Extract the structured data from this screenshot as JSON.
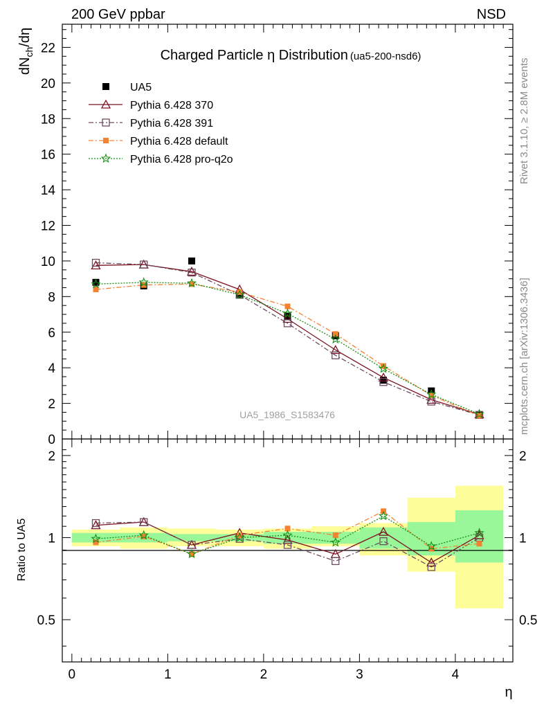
{
  "header": {
    "left": "200 GeV ppbar",
    "right": "NSD"
  },
  "side_texts": {
    "rivet": "Rivet 3.1.10, ≥ 2.8M events",
    "mcplots": "mcplots.cern.ch [arXiv:1306.3436]"
  },
  "watermark": "UA5_1986_S1583476",
  "colors": {
    "ua5": "#000000",
    "p370": "#7a1020",
    "p391": "#6e4a5e",
    "pdefault": "#f58231",
    "pq2o": "#138f13",
    "band_green": "#99f799",
    "band_yellow": "#fdfd99"
  },
  "chart_data": [
    {
      "type": "line",
      "title": "Charged Particle η Distribution",
      "title_suffix": "(ua5-200-nsd6)",
      "ylabel": "dN_ch/dη",
      "ylim": [
        0,
        23.3
      ],
      "xlim": [
        -0.1,
        4.6
      ],
      "y_ticks": [
        0,
        2,
        4,
        6,
        8,
        10,
        12,
        14,
        16,
        18,
        20,
        22
      ],
      "legend_position": "top-left",
      "x": [
        0.25,
        0.75,
        1.25,
        1.75,
        2.25,
        2.75,
        3.25,
        3.75,
        4.25
      ],
      "series": [
        {
          "name": "UA5",
          "marker": "square-filled",
          "values": [
            8.8,
            8.6,
            10.0,
            8.1,
            6.9,
            5.8,
            3.3,
            2.7,
            1.35
          ]
        },
        {
          "name": "Pythia 6.428 370",
          "marker": "triangle-open",
          "line": "solid",
          "values": [
            9.75,
            9.8,
            9.4,
            8.4,
            6.75,
            5.0,
            3.45,
            2.2,
            1.38
          ]
        },
        {
          "name": "Pythia 6.428 391",
          "marker": "square-open",
          "line": "dashdot",
          "values": [
            9.9,
            9.8,
            9.35,
            8.1,
            6.5,
            4.7,
            3.2,
            2.1,
            1.35
          ]
        },
        {
          "name": "Pythia 6.428 default",
          "marker": "square-small",
          "line": "dashdot",
          "values": [
            8.4,
            8.65,
            8.7,
            8.25,
            7.45,
            5.9,
            4.1,
            2.45,
            1.3
          ]
        },
        {
          "name": "Pythia 6.428 pro-q2o",
          "marker": "star",
          "line": "dotted",
          "values": [
            8.7,
            8.8,
            8.75,
            8.1,
            7.05,
            5.6,
            3.95,
            2.5,
            1.4
          ]
        }
      ]
    },
    {
      "type": "line",
      "ylabel": "Ratio to UA5",
      "xlabel": "η",
      "ylim": [
        0.35,
        2.3
      ],
      "xlim": [
        -0.1,
        4.6
      ],
      "y_ticks": [
        0.5,
        1,
        2
      ],
      "x_ticks": [
        0,
        1,
        2,
        3,
        4
      ],
      "x": [
        0.25,
        0.75,
        1.25,
        1.75,
        2.25,
        2.75,
        3.25,
        3.75,
        4.25
      ],
      "band_edges": [
        0,
        0.5,
        1.0,
        1.5,
        2.0,
        2.5,
        3.0,
        3.5,
        4.0,
        4.5
      ],
      "band_inner": [
        [
          0.96,
          1.04
        ],
        [
          0.96,
          1.04
        ],
        [
          0.97,
          1.03
        ],
        [
          0.97,
          1.03
        ],
        [
          0.95,
          1.05
        ],
        [
          0.95,
          1.05
        ],
        [
          0.91,
          1.09
        ],
        [
          0.86,
          1.14
        ],
        [
          0.81,
          1.26
        ]
      ],
      "band_outer": [
        [
          0.93,
          1.07
        ],
        [
          0.91,
          1.09
        ],
        [
          0.93,
          1.08
        ],
        [
          0.93,
          1.07
        ],
        [
          0.91,
          1.08
        ],
        [
          0.93,
          1.1
        ],
        [
          0.86,
          1.13
        ],
        [
          0.75,
          1.4
        ],
        [
          0.55,
          1.55
        ]
      ],
      "series": [
        {
          "name": "Pythia 6.428 370",
          "values": [
            1.11,
            1.14,
            0.94,
            1.04,
            0.98,
            0.87,
            1.05,
            0.81,
            1.02
          ]
        },
        {
          "name": "Pythia 6.428 391",
          "values": [
            1.13,
            1.14,
            0.94,
            0.99,
            0.94,
            0.82,
            0.97,
            0.78,
            1.0
          ]
        },
        {
          "name": "Pythia 6.428 default",
          "values": [
            0.96,
            1.01,
            0.87,
            1.02,
            1.08,
            1.02,
            1.25,
            0.91,
            0.95
          ]
        },
        {
          "name": "Pythia 6.428 pro-q2o",
          "values": [
            0.99,
            1.02,
            0.87,
            1.0,
            1.02,
            0.96,
            1.2,
            0.93,
            1.04
          ]
        }
      ]
    }
  ]
}
